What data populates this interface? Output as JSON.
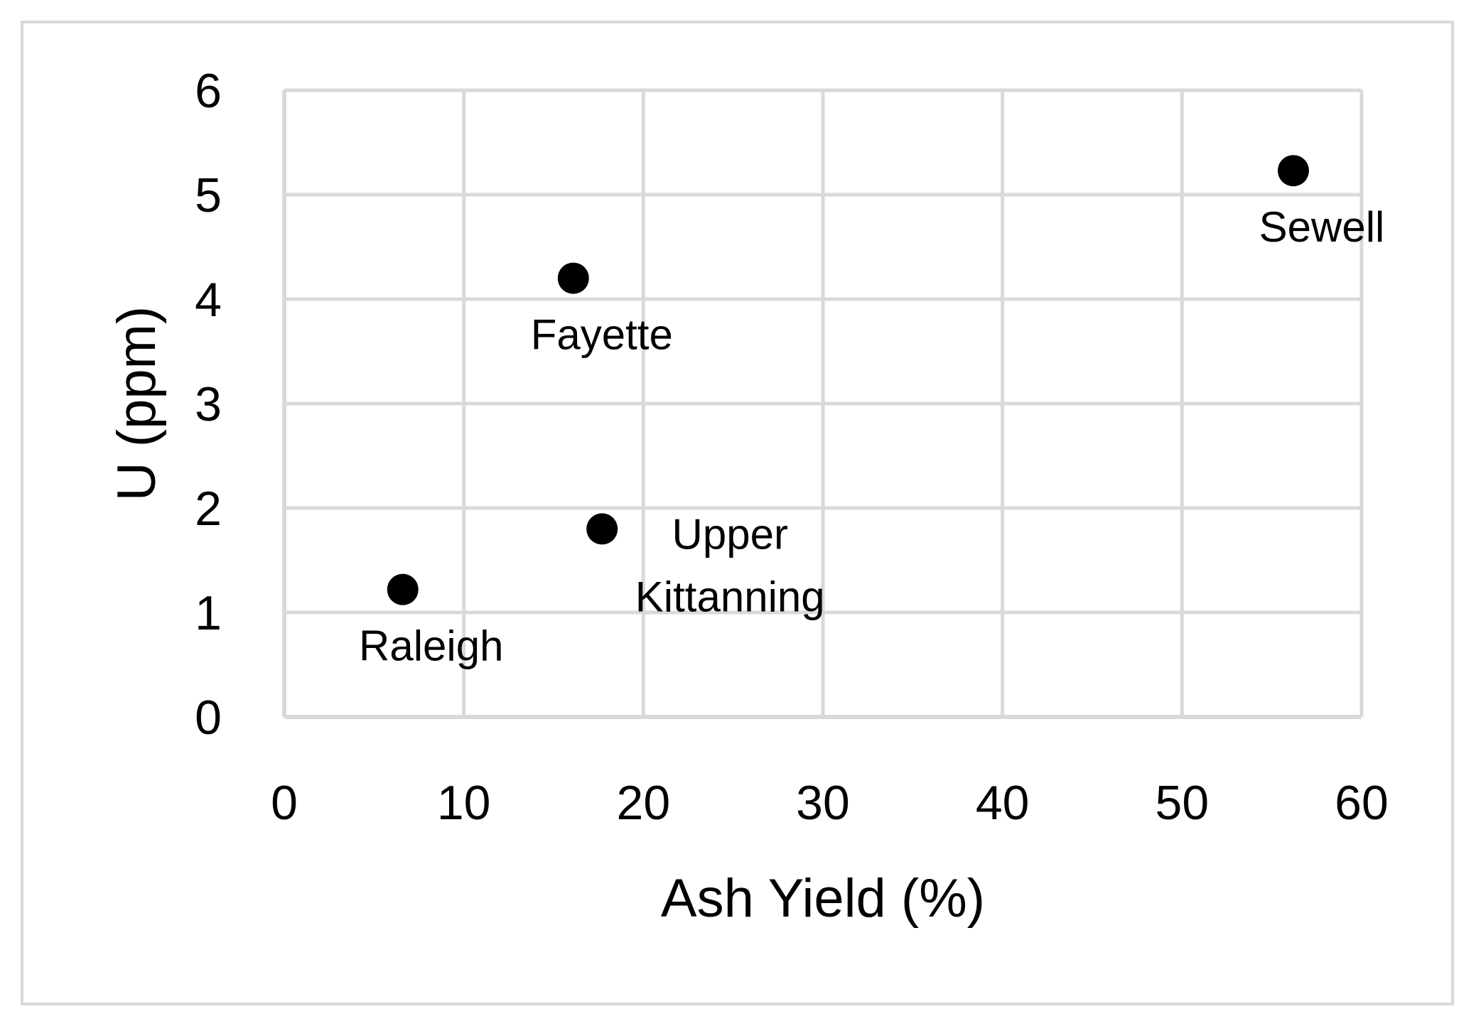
{
  "chart_data": {
    "type": "scatter",
    "title": "",
    "xlabel": "Ash Yield (%)",
    "ylabel": "U (ppm)",
    "xlim": [
      0,
      60
    ],
    "ylim": [
      0,
      6
    ],
    "xticks": [
      0,
      10,
      20,
      30,
      40,
      50,
      60
    ],
    "yticks": [
      0,
      1,
      2,
      3,
      4,
      5,
      6
    ],
    "grid": true,
    "legend": "none",
    "marker_color": "#000000",
    "grid_color": "#d9d9d9",
    "points": [
      {
        "label": "Raleigh",
        "label_lines": [
          "Raleigh"
        ],
        "label_position": "below",
        "x": 6.6,
        "y": 1.22
      },
      {
        "label": "Fayette",
        "label_lines": [
          "Fayette"
        ],
        "label_position": "below",
        "x": 16.1,
        "y": 4.2
      },
      {
        "label": "Upper Kittanning",
        "label_lines": [
          "Upper",
          "Kittanning"
        ],
        "label_position": "right",
        "x": 17.7,
        "y": 1.8
      },
      {
        "label": "Sewell",
        "label_lines": [
          "Sewell"
        ],
        "label_position": "below",
        "x": 56.2,
        "y": 5.23
      }
    ]
  }
}
